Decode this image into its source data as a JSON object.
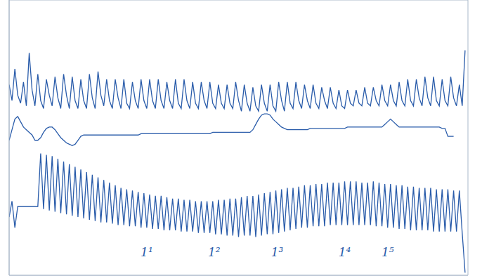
{
  "chart_data": {
    "type": "line",
    "grid": true,
    "tick_labels": false,
    "xlim": [
      0,
      160
    ],
    "xticks": [
      0,
      10,
      20,
      30,
      40,
      50,
      60,
      70,
      80,
      90,
      100,
      110,
      120,
      130,
      140,
      150,
      160
    ],
    "ylim": [
      0,
      104
    ],
    "yticks": [
      0,
      8,
      16,
      24,
      32,
      40,
      48,
      56,
      64,
      72,
      80,
      88,
      96,
      104
    ],
    "x": [
      0,
      1,
      2,
      3,
      4,
      5,
      6,
      7,
      8,
      9,
      10,
      11,
      12,
      13,
      14,
      15,
      16,
      17,
      18,
      19,
      20,
      21,
      22,
      23,
      24,
      25,
      26,
      27,
      28,
      29,
      30,
      31,
      32,
      33,
      34,
      35,
      36,
      37,
      38,
      39,
      40,
      41,
      42,
      43,
      44,
      45,
      46,
      47,
      48,
      49,
      50,
      51,
      52,
      53,
      54,
      55,
      56,
      57,
      58,
      59,
      60,
      61,
      62,
      63,
      64,
      65,
      66,
      67,
      68,
      69,
      70,
      71,
      72,
      73,
      74,
      75,
      76,
      77,
      78,
      79,
      80,
      81,
      82,
      83,
      84,
      85,
      86,
      87,
      88,
      89,
      90,
      91,
      92,
      93,
      94,
      95,
      96,
      97,
      98,
      99,
      100,
      101,
      102,
      103,
      104,
      105,
      106,
      107,
      108,
      109,
      110,
      111,
      112,
      113,
      114,
      115,
      116,
      117,
      118,
      119,
      120,
      121,
      122,
      123,
      124,
      125,
      126,
      127,
      128,
      129,
      130,
      131,
      132,
      133,
      134,
      135,
      136,
      137,
      138,
      139,
      140,
      141,
      142,
      143,
      144,
      145,
      146,
      147,
      148,
      149,
      150,
      151,
      152,
      153,
      154,
      155,
      156,
      157,
      158,
      159
    ],
    "series": [
      {
        "color": "#2a5caa",
        "values": [
          72,
          66,
          78,
          68,
          65,
          73,
          64,
          84,
          70,
          64,
          76,
          66,
          63,
          74,
          68,
          64,
          75,
          67,
          63,
          76,
          68,
          63,
          75,
          66,
          63,
          74,
          66,
          63,
          76,
          67,
          63,
          77,
          68,
          64,
          74,
          66,
          63,
          74,
          67,
          63,
          74,
          65,
          63,
          73,
          66,
          63,
          74,
          66,
          63,
          74,
          66,
          63,
          74,
          66,
          63,
          73,
          66,
          63,
          74,
          65,
          63,
          74,
          66,
          63,
          73,
          65,
          63,
          73,
          66,
          63,
          73,
          65,
          63,
          72,
          65,
          63,
          72,
          65,
          63,
          73,
          66,
          62,
          72,
          65,
          62,
          71,
          64,
          62,
          72,
          65,
          62,
          72,
          64,
          62,
          73,
          66,
          62,
          73,
          65,
          63,
          73,
          66,
          63,
          72,
          66,
          63,
          72,
          65,
          63,
          71,
          66,
          63,
          71,
          65,
          63,
          70,
          64,
          63,
          70,
          65,
          64,
          70,
          65,
          64,
          71,
          65,
          64,
          71,
          66,
          64,
          72,
          66,
          64,
          72,
          66,
          64,
          73,
          66,
          64,
          74,
          66,
          64,
          74,
          67,
          64,
          75,
          67,
          64,
          75,
          66,
          64,
          74,
          66,
          64,
          75,
          67,
          64,
          72,
          64,
          85
        ]
      },
      {
        "color": "#2a5caa",
        "values": [
          51,
          55,
          59,
          60,
          58,
          56,
          55,
          54,
          53,
          51,
          51,
          52,
          54,
          55.5,
          56,
          56,
          55,
          53.5,
          52,
          51,
          50,
          49.5,
          49,
          49.5,
          51,
          52.5,
          53,
          53,
          53,
          53,
          53,
          53,
          53,
          53,
          53,
          53,
          53,
          53,
          53,
          53,
          53,
          53,
          53,
          53,
          53,
          53,
          53.5,
          53.5,
          53.5,
          53.5,
          53.5,
          53.5,
          53.5,
          53.5,
          53.5,
          53.5,
          53.5,
          53.5,
          53.5,
          53.5,
          53.5,
          53.5,
          53.5,
          53.5,
          53.5,
          53.5,
          53.5,
          53.5,
          53.5,
          53.5,
          53.5,
          54,
          54,
          54,
          54,
          54,
          54,
          54,
          54,
          54,
          54,
          54,
          54,
          54,
          54,
          55,
          57,
          59,
          60.5,
          61,
          61,
          60.5,
          59,
          58,
          57,
          56,
          55.5,
          55,
          55,
          55,
          55,
          55,
          55,
          55,
          55,
          55.5,
          55.5,
          55.5,
          55.5,
          55.5,
          55.5,
          55.5,
          55.5,
          55.5,
          55.5,
          55.5,
          55.5,
          55.5,
          56,
          56,
          56,
          56,
          56,
          56,
          56,
          56,
          56,
          56,
          56,
          56,
          56,
          57,
          58,
          59,
          58,
          57,
          56,
          56,
          56,
          56,
          56,
          56,
          56,
          56,
          56,
          56,
          56,
          56,
          56,
          56,
          56,
          55.5,
          55.5,
          52.5,
          52.5,
          52.5,
          null,
          null,
          null,
          null
        ]
      },
      {
        "color": "#2a5caa",
        "values": [
          22,
          28,
          18,
          26,
          26,
          26,
          26,
          26,
          26,
          26,
          26,
          46,
          25,
          45.5,
          24.5,
          45,
          24,
          44,
          23.5,
          43,
          23,
          42,
          22.5,
          41,
          22,
          40,
          21.5,
          39,
          21,
          38,
          20.5,
          37,
          20,
          36,
          20,
          35,
          19.5,
          34,
          19,
          33,
          19,
          32.5,
          18.5,
          32,
          18.5,
          31.5,
          18,
          31,
          18,
          30.5,
          17.5,
          30,
          17.5,
          30,
          17,
          29.5,
          17,
          29,
          17,
          29,
          16.5,
          28.5,
          16.5,
          28.5,
          16.5,
          28,
          16,
          28,
          16,
          28,
          16,
          28,
          15.5,
          28.5,
          15.5,
          28.5,
          15,
          29,
          15,
          29,
          14.5,
          29.5,
          15,
          30,
          15,
          30,
          14.5,
          30.5,
          15,
          31,
          15.5,
          31.5,
          15.5,
          32,
          16,
          32.5,
          16.5,
          33,
          17,
          33,
          17.5,
          33.5,
          18,
          34,
          18,
          34,
          18.5,
          34.5,
          18.5,
          34.5,
          18.5,
          35,
          19,
          35,
          19,
          35,
          19,
          35.5,
          19,
          35.5,
          19,
          35.5,
          19,
          35,
          19,
          35,
          19,
          35.5,
          18.5,
          35,
          18.5,
          34.5,
          18,
          34.5,
          18,
          34,
          17.5,
          34,
          17.5,
          33.5,
          17,
          33.5,
          17,
          33,
          17,
          33,
          17,
          33,
          16.5,
          32.5,
          16.5,
          32.5,
          16.5,
          32.5,
          16.5,
          32,
          16.5,
          32,
          16,
          1
        ]
      }
    ],
    "annotations": [
      {
        "x": 48,
        "y": 8.7,
        "text": "1¹"
      },
      {
        "x": 71.5,
        "y": 8.7,
        "text": "1²"
      },
      {
        "x": 93.5,
        "y": 8.7,
        "text": "1³"
      },
      {
        "x": 117,
        "y": 8.7,
        "text": "1⁴"
      },
      {
        "x": 132,
        "y": 8.7,
        "text": "1⁵"
      }
    ]
  }
}
